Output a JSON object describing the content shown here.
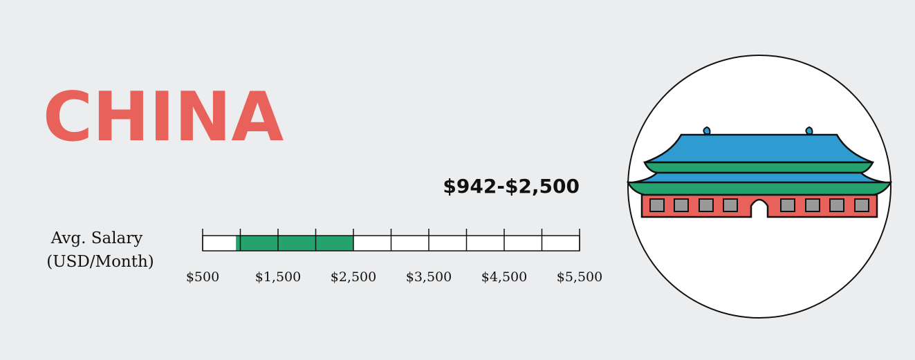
{
  "chart_data": {
    "type": "range",
    "title": "CHINA",
    "axis_label": [
      "Avg. Salary",
      "(USD/Month)"
    ],
    "range_label": "$942-$2,500",
    "values": [
      942,
      2500
    ],
    "color": "#25a36f",
    "xlim": [
      500,
      5500
    ],
    "xticks": [
      {
        "value": 500,
        "label": "$500"
      },
      {
        "value": 1500,
        "label": "$1,500"
      },
      {
        "value": 2500,
        "label": "$2,500"
      },
      {
        "value": 3500,
        "label": "$3,500"
      },
      {
        "value": 4500,
        "label": "$4,500"
      },
      {
        "value": 5500,
        "label": "$5,500"
      }
    ],
    "minor_xticks": [
      1000,
      2000,
      3000,
      4000,
      5000
    ]
  }
}
